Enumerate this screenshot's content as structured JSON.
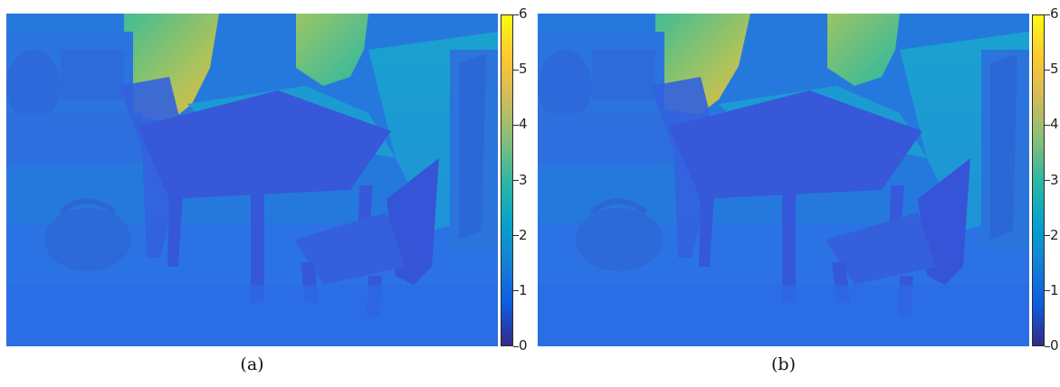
{
  "panels": [
    {
      "caption": "(a)"
    },
    {
      "caption": "(b)"
    }
  ],
  "colorbar": {
    "colormap": "parula",
    "range": [
      0,
      6
    ],
    "ticks": [
      "0",
      "1",
      "2",
      "3",
      "4",
      "5",
      "6"
    ],
    "colors": [
      "#352a87",
      "#0f5cdd",
      "#1481d6",
      "#06a4ca",
      "#2eb7a4",
      "#87bf77",
      "#d1bb59",
      "#fec832",
      "#f9fb0e"
    ]
  }
}
